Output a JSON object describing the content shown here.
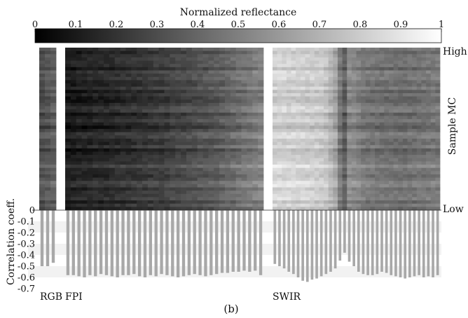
{
  "figure_label": "(b)",
  "colorbar": {
    "title": "Normalized reflectance",
    "ticks": [
      0,
      0.1,
      0.2,
      0.3,
      0.4,
      0.5,
      0.6,
      0.7,
      0.8,
      0.9,
      1
    ],
    "tick_labels": [
      "0",
      "0.1",
      "0.2",
      "0.3",
      "0.4",
      "0.5",
      "0.6",
      "0.7",
      "0.8",
      "0.9",
      "1"
    ]
  },
  "colors": {
    "bar": "#a8a8a8",
    "background": "#ffffff",
    "text": "#111111",
    "band_stripe": "#f2f2f2"
  },
  "chart_data": [
    {
      "type": "heatmap",
      "title": "",
      "right_axis_label": "Sample MC",
      "right_axis_top": "High",
      "right_axis_bottom": "Low",
      "colormap": "grayscale 0 (black) to 1 (white)",
      "value_range": [
        0,
        1
      ],
      "n_samples": 50,
      "segments": [
        {
          "name": "RGB",
          "n_bands": 3,
          "base": [
            0.3,
            0.33,
            0.36
          ]
        },
        {
          "name": "FPI",
          "n_bands": 36,
          "base_profile": [
            [
              0,
              0.11
            ],
            [
              0.2,
              0.15
            ],
            [
              0.4,
              0.2
            ],
            [
              0.6,
              0.27
            ],
            [
              0.8,
              0.36
            ],
            [
              1.0,
              0.5
            ]
          ]
        },
        {
          "name": "SWIR",
          "n_bands": 36,
          "base_profile": [
            [
              0,
              0.82
            ],
            [
              0.3,
              0.78
            ],
            [
              0.38,
              0.62
            ],
            [
              0.42,
              0.3
            ],
            [
              0.46,
              0.55
            ],
            [
              0.55,
              0.45
            ],
            [
              0.8,
              0.42
            ],
            [
              1.0,
              0.46
            ]
          ]
        }
      ]
    },
    {
      "type": "bar",
      "title": "",
      "ylabel": "Correlation coeff.",
      "ylim": [
        -0.7,
        0
      ],
      "yticks": [
        0,
        -0.1,
        -0.2,
        -0.3,
        -0.4,
        -0.5,
        -0.6,
        -0.7
      ],
      "ytick_labels": [
        "0",
        "-0.1",
        "-0.2",
        "-0.3",
        "-0.4",
        "-0.5",
        "-0.6",
        "-0.7"
      ],
      "segment_labels": [
        "RGB",
        "FPI",
        "SWIR"
      ],
      "series": [
        {
          "segment": "RGB",
          "values": [
            -0.5,
            -0.5,
            -0.47
          ]
        },
        {
          "segment": "FPI",
          "values": [
            -0.58,
            -0.58,
            -0.59,
            -0.6,
            -0.58,
            -0.59,
            -0.57,
            -0.58,
            -0.59,
            -0.6,
            -0.58,
            -0.58,
            -0.57,
            -0.59,
            -0.6,
            -0.58,
            -0.59,
            -0.57,
            -0.58,
            -0.59,
            -0.6,
            -0.59,
            -0.58,
            -0.57,
            -0.58,
            -0.59,
            -0.58,
            -0.57,
            -0.56,
            -0.56,
            -0.55,
            -0.55,
            -0.54,
            -0.55,
            -0.54,
            -0.58
          ]
        },
        {
          "segment": "SWIR",
          "values": [
            -0.48,
            -0.5,
            -0.52,
            -0.55,
            -0.57,
            -0.6,
            -0.63,
            -0.64,
            -0.62,
            -0.61,
            -0.59,
            -0.57,
            -0.55,
            -0.52,
            -0.45,
            -0.38,
            -0.46,
            -0.5,
            -0.55,
            -0.57,
            -0.58,
            -0.58,
            -0.57,
            -0.55,
            -0.56,
            -0.58,
            -0.59,
            -0.6,
            -0.61,
            -0.6,
            -0.59,
            -0.58,
            -0.6,
            -0.59,
            -0.6,
            -0.58
          ]
        }
      ]
    }
  ]
}
